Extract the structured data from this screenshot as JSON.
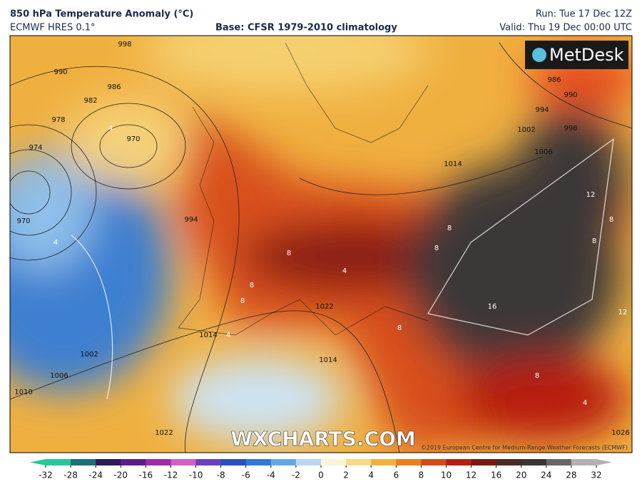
{
  "header": {
    "title": "850 hPa Temperature Anomaly (°C)",
    "model": "ECMWF HRES 0.1°",
    "base": "Base: CFSR 1979-2010 climatology",
    "run": "Run: Tue 17 Dec 12Z",
    "valid": "Valid: Thu 19 Dec 00:00 UTC"
  },
  "map": {
    "logo": "MetDesk",
    "watermark": "WXCHARTS.COM",
    "copyright": "©2019 European Centre for Medium-Range Weather Forecasts (ECMWF)",
    "isobar_labels": [
      998,
      990,
      986,
      982,
      978,
      974,
      970,
      970,
      994,
      1002,
      1006,
      1010,
      1014,
      1022,
      1022,
      1014,
      986,
      990,
      994,
      998,
      1002,
      1006,
      1014,
      1026
    ],
    "anomaly_labels": [
      4,
      4,
      8,
      8,
      8,
      8,
      8,
      4,
      12,
      16,
      12,
      8,
      8,
      8,
      8,
      4,
      4
    ]
  },
  "colorbar": {
    "ticks": [
      -32,
      -28,
      -24,
      -20,
      -16,
      -12,
      -10,
      -8,
      -6,
      -4,
      -2,
      0,
      2,
      4,
      6,
      8,
      10,
      12,
      16,
      20,
      24,
      28,
      32
    ],
    "colors": [
      "#27c79a",
      "#1b6f7a",
      "#2b1a5c",
      "#5a1e8c",
      "#a02aa8",
      "#d05fc6",
      "#6b3fc0",
      "#2a4fc0",
      "#2f7ad8",
      "#66a8e6",
      "#b8d8f2",
      "#fbf5d8",
      "#f6da86",
      "#f0b13c",
      "#e8801e",
      "#d54a14",
      "#b81e10",
      "#7a1a12",
      "#4a2a26",
      "#3a3434",
      "#6a6666",
      "#b8b0b0"
    ]
  }
}
